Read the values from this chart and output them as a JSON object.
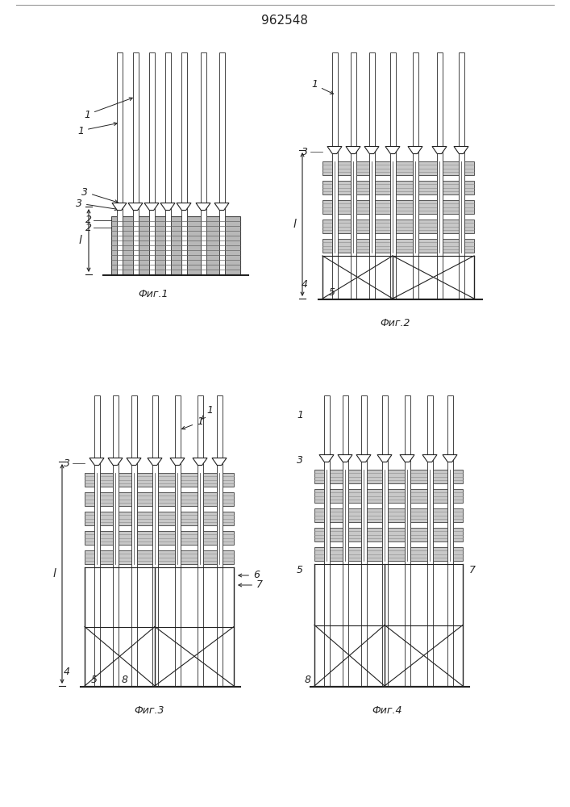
{
  "title": "962548",
  "bg_color": "#ffffff",
  "line_color": "#222222",
  "fig_labels": [
    "Фиг.1",
    "Фиг.2",
    "Фиг.3",
    "Фиг.4"
  ],
  "col_color": "#333333",
  "slab_fill": "#c8c8c8",
  "slab_line": "#777777"
}
